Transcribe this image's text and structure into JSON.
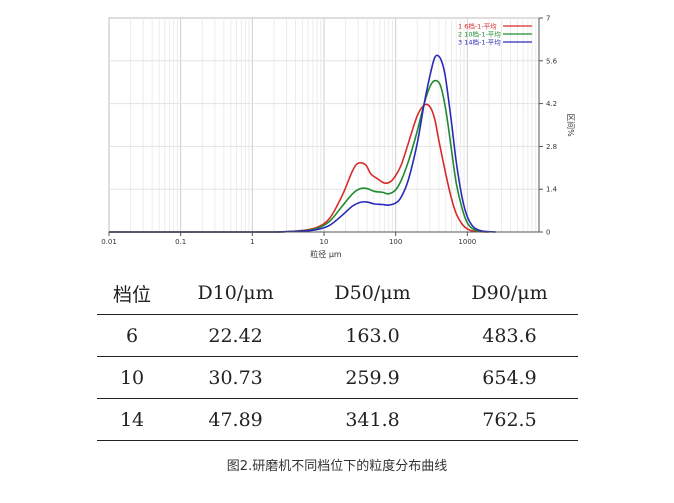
{
  "chart_data": {
    "type": "line",
    "xlabel": "粒径 μm",
    "ylabel": "区间%",
    "x_scale": "log",
    "xlim": [
      0.01,
      10000
    ],
    "ylim": [
      0,
      7
    ],
    "x_ticks": [
      "0.01",
      "0.1",
      "1",
      "10",
      "100",
      "1000"
    ],
    "x_tick_values": [
      0.01,
      0.1,
      1,
      10,
      100,
      1000
    ],
    "y_ticks": [
      "0",
      "1.4",
      "2.8",
      "4.2",
      "5.6",
      "7"
    ],
    "y_tick_values": [
      0,
      1.4,
      2.8,
      4.2,
      5.6,
      7
    ],
    "grid": true,
    "legend_position": "top-right",
    "series": [
      {
        "name": "1  6档-1-平均",
        "color": "#d62b2b",
        "x": [
          2,
          3,
          5,
          8,
          12,
          18,
          25,
          30,
          38,
          45,
          55,
          70,
          85,
          100,
          120,
          150,
          200,
          250,
          300,
          350,
          400,
          500,
          600,
          700,
          850,
          1000,
          1200,
          1500,
          2000
        ],
        "y": [
          0,
          0.01,
          0.05,
          0.15,
          0.45,
          1.2,
          2.0,
          2.25,
          2.2,
          1.9,
          1.75,
          1.6,
          1.65,
          1.85,
          2.2,
          2.9,
          3.8,
          4.15,
          4.1,
          3.7,
          3.0,
          1.9,
          1.1,
          0.6,
          0.25,
          0.1,
          0.03,
          0.01,
          0
        ]
      },
      {
        "name": "2  10档-1-平均",
        "color": "#1e8a2e",
        "x": [
          2,
          3,
          5,
          8,
          12,
          18,
          25,
          32,
          40,
          50,
          65,
          80,
          100,
          120,
          150,
          200,
          250,
          300,
          350,
          420,
          500,
          600,
          700,
          850,
          1000,
          1200,
          1500,
          2000
        ],
        "y": [
          0,
          0.01,
          0.04,
          0.12,
          0.35,
          0.85,
          1.25,
          1.42,
          1.42,
          1.33,
          1.3,
          1.25,
          1.38,
          1.7,
          2.3,
          3.3,
          4.2,
          4.75,
          4.95,
          4.8,
          4.0,
          2.7,
          1.6,
          0.75,
          0.3,
          0.1,
          0.03,
          0
        ]
      },
      {
        "name": "3  14档-1-平均",
        "color": "#2a2ab8",
        "x": [
          2,
          3,
          5,
          8,
          12,
          18,
          25,
          32,
          40,
          50,
          65,
          80,
          100,
          120,
          150,
          200,
          250,
          300,
          350,
          400,
          450,
          500,
          600,
          700,
          850,
          1000,
          1200,
          1500,
          2000,
          2500
        ],
        "y": [
          0,
          0.01,
          0.03,
          0.08,
          0.22,
          0.55,
          0.85,
          0.97,
          0.98,
          0.92,
          0.9,
          0.88,
          0.95,
          1.15,
          1.7,
          2.9,
          4.2,
          5.1,
          5.7,
          5.75,
          5.5,
          5.0,
          3.6,
          2.3,
          1.1,
          0.5,
          0.18,
          0.05,
          0.01,
          0
        ]
      }
    ]
  },
  "table": {
    "headers": [
      "档位",
      "D10/μm",
      "D50/μm",
      "D90/μm"
    ],
    "rows": [
      [
        "6",
        "22.42",
        "163.0",
        "483.6"
      ],
      [
        "10",
        "30.73",
        "259.9",
        "654.9"
      ],
      [
        "14",
        "47.89",
        "341.8",
        "762.5"
      ]
    ]
  },
  "caption": "图2.研磨机不同档位下的粒度分布曲线"
}
